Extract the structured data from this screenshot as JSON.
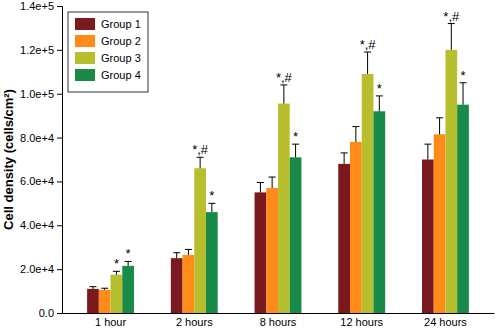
{
  "chart_data": {
    "type": "bar",
    "y_label": "Cell density (cells/cm²)",
    "categories": [
      "1 hour",
      "2 hours",
      "8 hours",
      "12 hours",
      "24 hours"
    ],
    "series": [
      {
        "name": "Group 1",
        "color": "#7a1a1f",
        "values": [
          11000,
          25000,
          55000,
          68000,
          70000
        ],
        "errors": [
          1000,
          2500,
          4500,
          5000,
          7000
        ],
        "annotations": [
          null,
          null,
          null,
          null,
          null
        ]
      },
      {
        "name": "Group 2",
        "color": "#ff8c1a",
        "values": [
          10500,
          26500,
          57000,
          78000,
          81500
        ],
        "errors": [
          800,
          2500,
          5000,
          7000,
          7500
        ],
        "annotations": [
          null,
          null,
          null,
          null,
          null
        ]
      },
      {
        "name": "Group 3",
        "color": "#b8bf2e",
        "values": [
          17500,
          66000,
          95500,
          109000,
          120000
        ],
        "errors": [
          1500,
          5000,
          8500,
          10000,
          12000
        ],
        "annotations": [
          "*",
          "*,#",
          "*,#",
          "*,#",
          "*,#"
        ]
      },
      {
        "name": "Group 4",
        "color": "#1a8a48",
        "values": [
          21500,
          46000,
          71000,
          92000,
          95000
        ],
        "errors": [
          2000,
          4000,
          6000,
          7000,
          10000
        ],
        "annotations": [
          "*",
          "*",
          "*",
          "*",
          "*"
        ]
      }
    ],
    "ylim": [
      0,
      140000
    ],
    "yticks": [
      {
        "value": 0,
        "label": "0.0"
      },
      {
        "value": 20000,
        "label": "2.0e+4"
      },
      {
        "value": 40000,
        "label": "4.0e+4"
      },
      {
        "value": 60000,
        "label": "6.0e+4"
      },
      {
        "value": 80000,
        "label": "8.0e+4"
      },
      {
        "value": 100000,
        "label": "1.0e+5"
      },
      {
        "value": 120000,
        "label": "1.2e+5"
      },
      {
        "value": 140000,
        "label": "1.4e+5"
      }
    ],
    "legend": "upper left",
    "grid": false
  }
}
